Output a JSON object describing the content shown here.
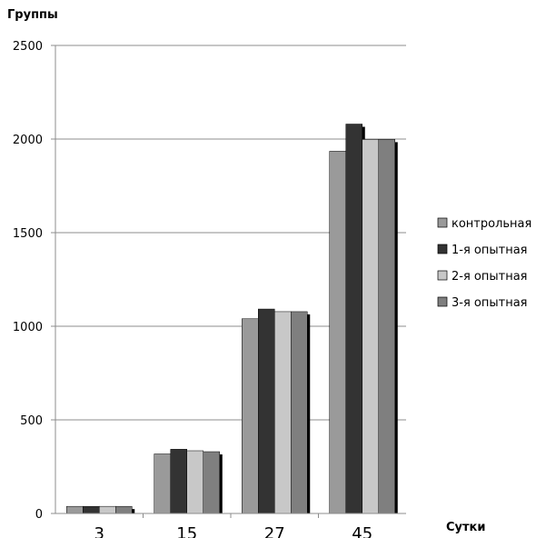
{
  "chart_data": {
    "type": "bar",
    "title": "",
    "ylabel": "Группы",
    "xlabel": "Сутки",
    "categories": [
      "3",
      "15",
      "27",
      "45"
    ],
    "ylim": [
      0,
      2500
    ],
    "yticks": [
      "0",
      "500",
      "1000",
      "1500",
      "2000",
      "2500"
    ],
    "grid": true,
    "legend_position": "right",
    "series": [
      {
        "name": "контрольная",
        "color": "#9a9a9a",
        "values": [
          38,
          318,
          1040,
          1935
        ]
      },
      {
        "name": "1-я опытная",
        "color": "#333333",
        "values": [
          38,
          343,
          1092,
          2080
        ]
      },
      {
        "name": "2-я опытная",
        "color": "#c8c8c8",
        "values": [
          38,
          335,
          1078,
          1998
        ]
      },
      {
        "name": "3-я опытная",
        "color": "#7f7f7f",
        "values": [
          38,
          330,
          1078,
          1998
        ]
      }
    ]
  }
}
